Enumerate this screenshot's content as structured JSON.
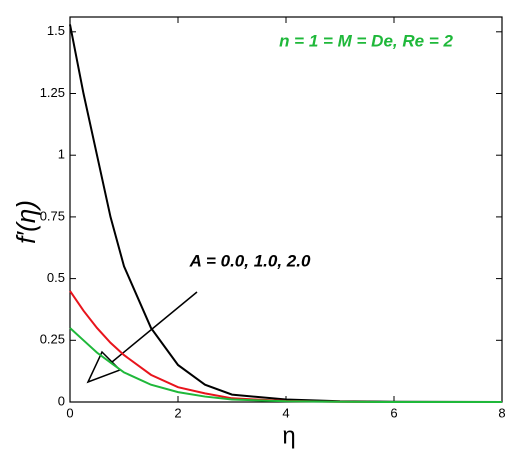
{
  "chart_data": {
    "type": "line",
    "x_label": "η",
    "y_label": "f′(η)",
    "annotations": [
      "n = 1 = M = De, Re = 2",
      "A = 0.0, 1.0, 2.0"
    ],
    "x": [
      0,
      0.25,
      0.5,
      0.75,
      1,
      1.5,
      2,
      2.5,
      3,
      4,
      5,
      6,
      8
    ],
    "series": [
      {
        "color": "#000000",
        "values": [
          1.53,
          1.25,
          1.0,
          0.75,
          0.55,
          0.3,
          0.15,
          0.07,
          0.03,
          0.01,
          0.003,
          0.001,
          0
        ]
      },
      {
        "color": "#e8141c",
        "values": [
          0.45,
          0.37,
          0.3,
          0.24,
          0.19,
          0.11,
          0.06,
          0.035,
          0.015,
          0.004,
          0.001,
          0,
          0
        ]
      },
      {
        "color": "#1fb83a",
        "values": [
          0.3,
          0.25,
          0.2,
          0.16,
          0.12,
          0.07,
          0.04,
          0.022,
          0.01,
          0.003,
          0.001,
          0,
          0
        ]
      }
    ],
    "xlim": [
      0,
      8
    ],
    "xticks": [
      0,
      2,
      4,
      6,
      8
    ],
    "ylim": [
      0,
      1.56
    ],
    "yticks": [
      0,
      0.25,
      0.5,
      0.75,
      1,
      1.25,
      1.5
    ]
  }
}
